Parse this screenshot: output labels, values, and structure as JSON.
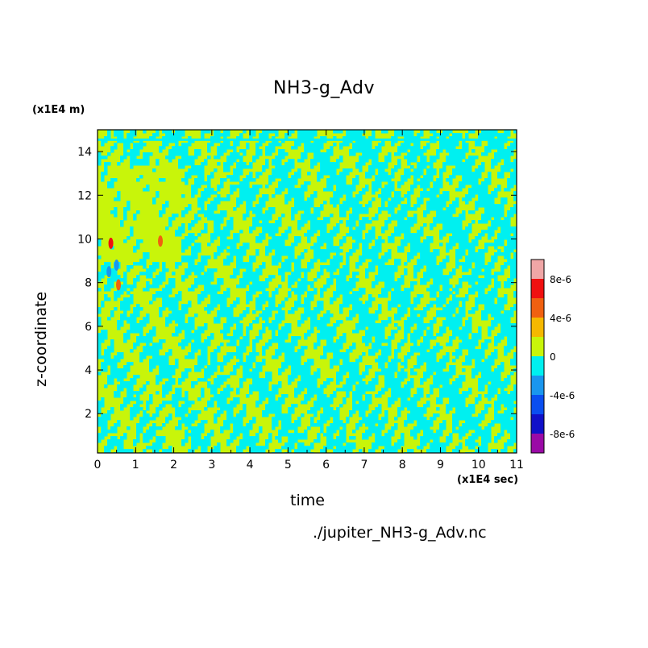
{
  "chart_data": {
    "type": "heatmap",
    "title": "NH3-g_Adv",
    "xlabel": "time",
    "ylabel": "z-coordinate",
    "x_unit": "(x1E4 sec)",
    "y_unit": "(x1E4 m)",
    "xlim": [
      0,
      11
    ],
    "ylim": [
      0.2,
      15
    ],
    "x_ticks": [
      0,
      1,
      2,
      3,
      4,
      5,
      6,
      7,
      8,
      9,
      10,
      11
    ],
    "y_ticks": [
      2,
      4,
      6,
      8,
      10,
      12,
      14
    ],
    "colorbar": {
      "levels": [
        -1e-05,
        -8e-06,
        -6e-06,
        -4e-06,
        -2e-06,
        0,
        2e-06,
        4e-06,
        6e-06,
        8e-06,
        1e-05
      ],
      "tick_labels": [
        "8e-6",
        "4e-6",
        "0",
        "-4e-6",
        "-8e-6"
      ],
      "colors": [
        "#9a0aa6",
        "#1010c8",
        "#0a4ef0",
        "#1a96ee",
        "#00f0f0",
        "#c8f50a",
        "#f5b800",
        "#f06010",
        "#f01010",
        "#f0a6a6"
      ]
    },
    "file_label": "./jupiter_NH3-g_Adv.nc",
    "dominant_values": {
      "positive_band": "0 to 2e-6",
      "negative_band": "-2e-6 to 0"
    },
    "anomalies": [
      {
        "x": 0.35,
        "y": 9.8,
        "value": 6e-06
      },
      {
        "x": 0.55,
        "y": 7.9,
        "value": 5e-06
      },
      {
        "x": 1.65,
        "y": 9.9,
        "value": 5e-06
      },
      {
        "x": 0.5,
        "y": 8.8,
        "value": -4e-06
      },
      {
        "x": 0.3,
        "y": 8.5,
        "value": -3e-06
      }
    ]
  }
}
